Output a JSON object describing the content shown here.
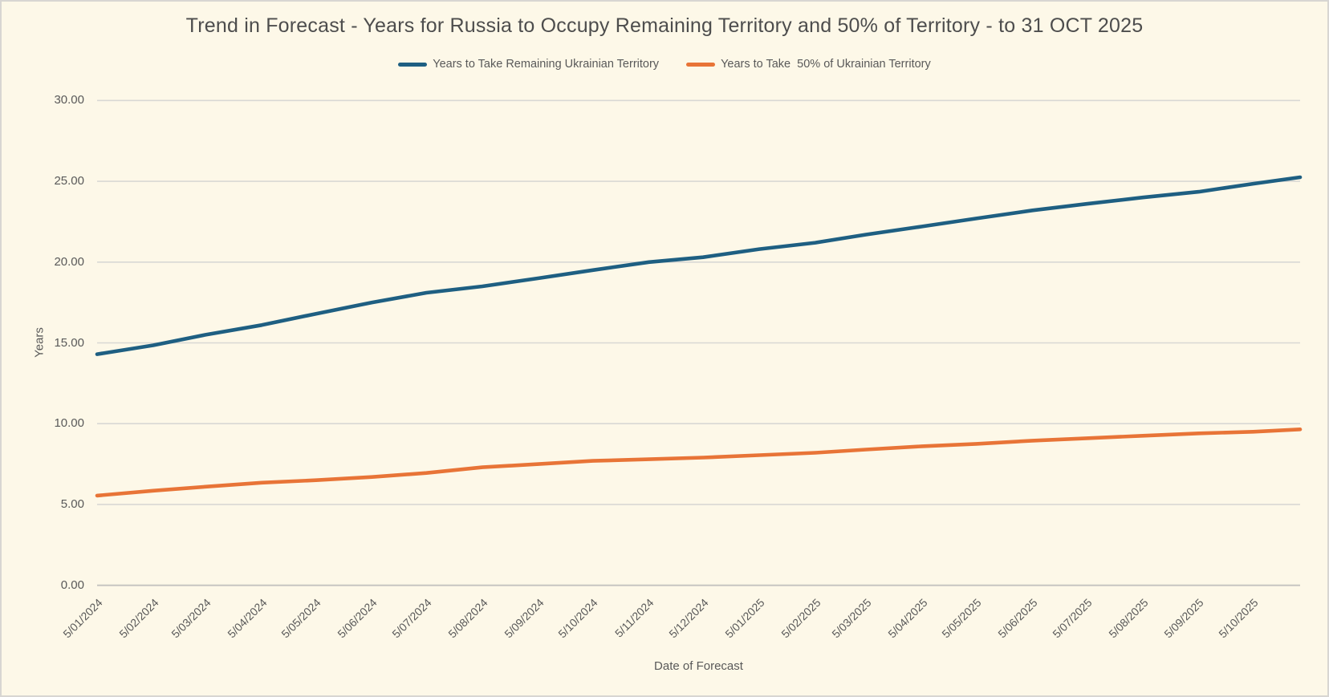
{
  "chart_data": {
    "type": "line",
    "title": "Trend in Forecast - Years for Russia to Occupy Remaining Territory and 50% of Territory - to 31 OCT 2025",
    "xlabel": "Date of Forecast",
    "ylabel": "Years",
    "ylim": [
      0,
      30
    ],
    "ytick_values": [
      0,
      5,
      10,
      15,
      20,
      25,
      30
    ],
    "ytick_labels": [
      "0.00",
      "5.00",
      "10.00",
      "15.00",
      "20.00",
      "25.00",
      "30.00"
    ],
    "grid": "horizontal",
    "legend_position": "top",
    "x_tick_labels": [
      "5/01/2024",
      "5/02/2024",
      "5/03/2024",
      "5/04/2024",
      "5/05/2024",
      "5/06/2024",
      "5/07/2024",
      "5/08/2024",
      "5/09/2024",
      "5/10/2024",
      "5/11/2024",
      "5/12/2024",
      "5/01/2025",
      "5/02/2025",
      "5/03/2025",
      "5/04/2025",
      "5/05/2025",
      "5/06/2025",
      "5/07/2025",
      "5/08/2025",
      "5/09/2025",
      "5/10/2025"
    ],
    "x_tick_days": [
      0,
      31,
      60,
      91,
      121,
      152,
      182,
      213,
      244,
      274,
      305,
      335,
      366,
      397,
      425,
      456,
      486,
      517,
      547,
      578,
      609,
      639
    ],
    "x_axis_end_day": 665,
    "series": [
      {
        "name": "Years to Take Remaining Ukrainian Territory",
        "color": "#1E5F82",
        "x_days": [
          0,
          31,
          60,
          91,
          121,
          152,
          182,
          213,
          244,
          274,
          305,
          335,
          366,
          397,
          425,
          456,
          486,
          517,
          547,
          578,
          609,
          639,
          665
        ],
        "values": [
          14.3,
          14.85,
          15.5,
          16.1,
          16.8,
          17.5,
          18.1,
          18.5,
          19.0,
          19.5,
          20.0,
          20.3,
          20.8,
          21.2,
          21.7,
          22.2,
          22.7,
          23.2,
          23.6,
          24.0,
          24.35,
          24.85,
          25.25
        ]
      },
      {
        "name": "Years to Take  50% of Ukrainian Territory",
        "color": "#E87437",
        "x_days": [
          0,
          31,
          60,
          91,
          121,
          152,
          182,
          213,
          244,
          274,
          305,
          335,
          366,
          397,
          425,
          456,
          486,
          517,
          547,
          578,
          609,
          639,
          665
        ],
        "values": [
          5.55,
          5.85,
          6.1,
          6.35,
          6.5,
          6.7,
          6.95,
          7.3,
          7.5,
          7.7,
          7.8,
          7.9,
          8.05,
          8.2,
          8.4,
          8.6,
          8.75,
          8.95,
          9.1,
          9.25,
          9.4,
          9.5,
          9.65
        ]
      }
    ],
    "colors": {
      "background": "#FDF8E8",
      "gridline": "#D9D8D4",
      "axis_line": "#C6C5C1",
      "text": "#595959"
    }
  }
}
